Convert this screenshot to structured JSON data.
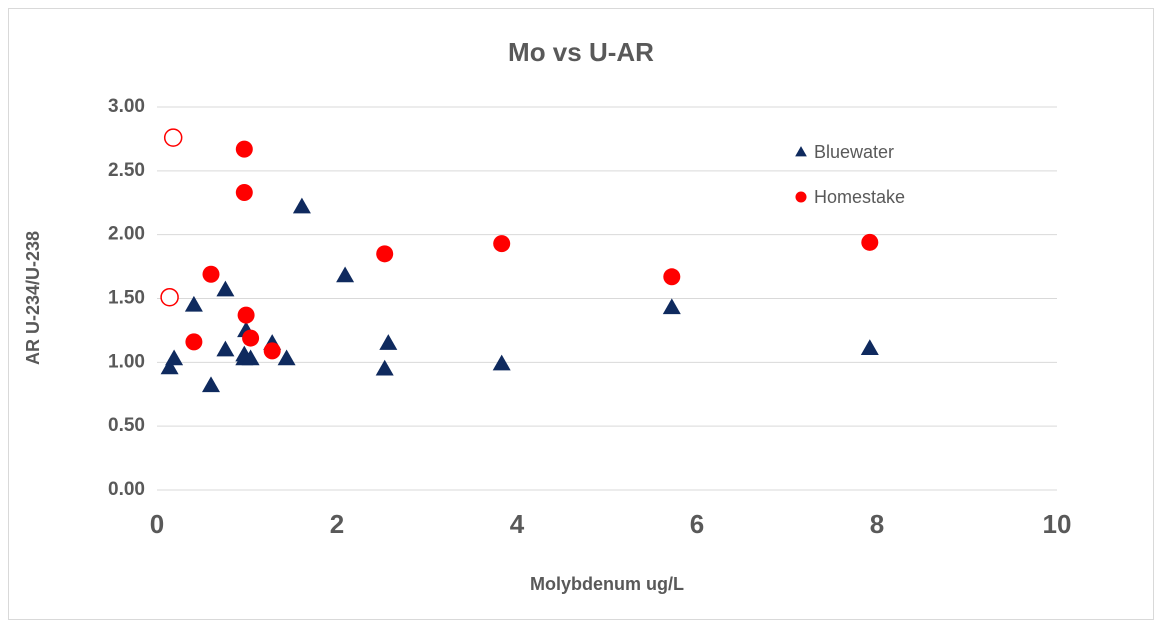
{
  "chart_data": {
    "type": "scatter",
    "title": "Mo vs U-AR",
    "xlabel": "Molybdenum ug/L",
    "ylabel": "AR U-234/U-238",
    "xlim": [
      0,
      10
    ],
    "xticks": [
      0,
      2,
      4,
      6,
      8,
      10
    ],
    "ylim": [
      0,
      3
    ],
    "yticks": [
      {
        "value": 0,
        "label": "0.00"
      },
      {
        "value": 0.5,
        "label": "0.50"
      },
      {
        "value": 1,
        "label": "1.00"
      },
      {
        "value": 1.5,
        "label": "1.50"
      },
      {
        "value": 2,
        "label": "2.00"
      },
      {
        "value": 2.5,
        "label": "2.50"
      },
      {
        "value": 3,
        "label": "3.00"
      }
    ],
    "grid": true,
    "legend": "upper right",
    "series": [
      {
        "name": "Bluewater",
        "color": "#0f2a5e",
        "marker": "triangle",
        "x": [
          0.14,
          0.19,
          0.41,
          0.6,
          0.76,
          0.76,
          0.97,
          0.97,
          0.99,
          1.04,
          1.28,
          1.44,
          1.61,
          2.09,
          2.53,
          2.57,
          3.83,
          5.72,
          7.92
        ],
        "values": [
          0.96,
          1.03,
          1.45,
          0.82,
          1.1,
          1.57,
          1.03,
          1.06,
          1.25,
          1.03,
          1.15,
          1.03,
          2.22,
          1.68,
          0.95,
          1.15,
          0.99,
          1.43,
          1.11
        ]
      },
      {
        "name": "Homestake",
        "color": "#ff0000",
        "marker": "circle",
        "x": [
          0.41,
          0.6,
          0.97,
          0.97,
          0.99,
          1.04,
          1.28,
          2.53,
          3.83,
          5.72,
          7.92
        ],
        "values": [
          1.16,
          1.69,
          2.67,
          2.33,
          1.37,
          1.19,
          1.09,
          1.85,
          1.93,
          1.67,
          1.94
        ]
      },
      {
        "color": "#ff0000",
        "marker": "circle",
        "filled": false,
        "x": [
          0.18,
          0.14
        ],
        "values": [
          2.76,
          1.51
        ]
      }
    ]
  }
}
